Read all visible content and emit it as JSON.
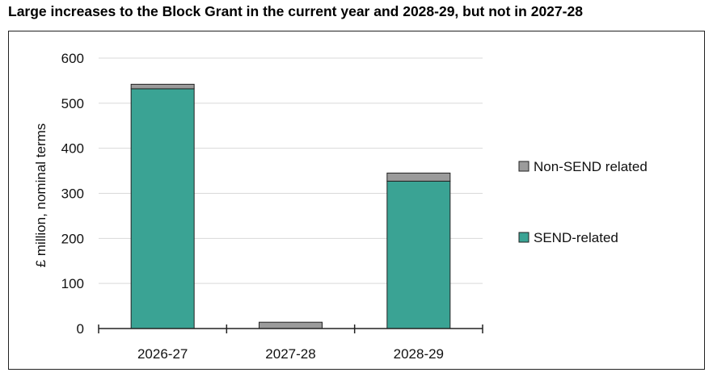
{
  "chart_data": {
    "type": "bar",
    "stacked": true,
    "title": "Large increases to the Block Grant in the current year and 2028-29, but not in 2027-28",
    "ylabel": "£ million, nominal terms",
    "xlabel": "",
    "ylim": [
      0,
      600
    ],
    "yticks": [
      0,
      100,
      200,
      300,
      400,
      500,
      600
    ],
    "grid": true,
    "legend_position": "right",
    "categories": [
      "2026-27",
      "2027-28",
      "2028-29"
    ],
    "series": [
      {
        "name": "SEND-related",
        "values": [
          532,
          0,
          327
        ],
        "color": "#3aa394"
      },
      {
        "name": "Non-SEND related",
        "values": [
          10,
          14,
          18
        ],
        "color": "#9b9b9b"
      }
    ]
  }
}
